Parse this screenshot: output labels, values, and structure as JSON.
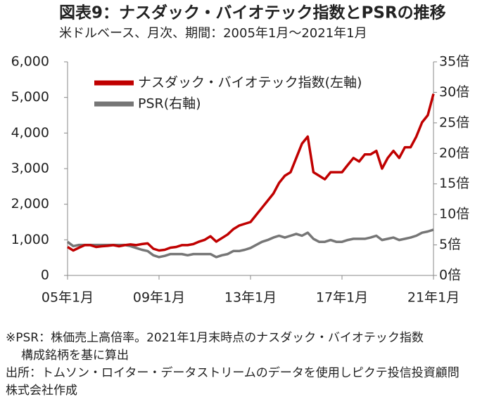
{
  "chart_data": {
    "type": "line",
    "title": "図表9：ナスダック・バイオテック指数とPSRの推移",
    "subtitle": "米ドルベース、月次、期間：2005年1月～2021年1月",
    "categories": [
      "05年1月",
      null,
      null,
      null,
      null,
      null,
      null,
      null,
      null,
      null,
      null,
      null,
      null,
      null,
      null,
      null,
      "09年1月",
      null,
      null,
      null,
      null,
      null,
      null,
      null,
      null,
      null,
      null,
      null,
      null,
      null,
      null,
      null,
      "13年1月",
      null,
      null,
      null,
      null,
      null,
      null,
      null,
      null,
      null,
      null,
      null,
      null,
      null,
      null,
      null,
      "17年1月",
      null,
      null,
      null,
      null,
      null,
      null,
      null,
      null,
      null,
      null,
      null,
      null,
      null,
      null,
      null,
      "21年1月"
    ],
    "series": [
      {
        "name": "ナスダック・バイオテック指数(左軸)",
        "color": "#c00000",
        "values": [
          800,
          700,
          780,
          850,
          850,
          800,
          820,
          830,
          850,
          820,
          850,
          870,
          850,
          880,
          900,
          750,
          700,
          720,
          780,
          800,
          850,
          850,
          880,
          950,
          1000,
          1100,
          950,
          1050,
          1150,
          1300,
          1400,
          1450,
          1500,
          1700,
          1900,
          2100,
          2300,
          2600,
          2800,
          2900,
          3300,
          3700,
          3900,
          2900,
          2800,
          2700,
          2900,
          2900,
          2900,
          3100,
          3300,
          3200,
          3400,
          3400,
          3500,
          3000,
          3300,
          3500,
          3300,
          3600,
          3600,
          3900,
          4300,
          4500,
          5100
        ]
      },
      {
        "name": "PSR(右軸)",
        "color": "#767676",
        "axis": "y2",
        "values": [
          5.5,
          4.8,
          5,
          5,
          5,
          5,
          5,
          5,
          5,
          5,
          5,
          4.8,
          4.5,
          4.2,
          4,
          3.3,
          3,
          3.2,
          3.5,
          3.5,
          3.5,
          3.3,
          3.5,
          3.5,
          3.5,
          3.5,
          3,
          3.3,
          3.5,
          4,
          4,
          4.2,
          4.5,
          5,
          5.5,
          5.8,
          6.2,
          6.5,
          6.2,
          6.5,
          6.8,
          6.5,
          7,
          6,
          5.5,
          5.5,
          5.8,
          5.5,
          5.5,
          5.8,
          6,
          6,
          6,
          6.2,
          6.5,
          5.8,
          6,
          6.2,
          5.8,
          6,
          6.2,
          6.5,
          7,
          7.2,
          7.5
        ]
      }
    ],
    "ylim": [
      0,
      6000
    ],
    "yticks": [
      0,
      {
        "value": 1000,
        "label": "1,000"
      },
      {
        "value": 2000,
        "label": "2,000"
      },
      {
        "value": 3000,
        "label": "3,000"
      },
      {
        "value": 4000,
        "label": "4,000"
      },
      {
        "value": 5000,
        "label": "5,000"
      },
      {
        "value": 6000,
        "label": "6,000"
      }
    ],
    "y2lim": [
      0,
      35
    ],
    "y2ticks": [
      {
        "value": 0,
        "label": "0倍"
      },
      {
        "value": 5,
        "label": "5倍"
      },
      {
        "value": 10,
        "label": "10倍"
      },
      {
        "value": 15,
        "label": "15倍"
      },
      {
        "value": 20,
        "label": "20倍"
      },
      {
        "value": 25,
        "label": "25倍"
      },
      {
        "value": 30,
        "label": "30倍"
      },
      {
        "value": 35,
        "label": "35倍"
      }
    ],
    "legend": "upper-left",
    "notes": [
      "※PSR：株価売上高倍率。2021年1月末時点のナスダック・バイオテック指数",
      "構成銘柄を基に算出",
      "出所：トムソン・ロイター・データストリームのデータを使用しピクテ投信投資顧問",
      "株式会社作成"
    ]
  }
}
